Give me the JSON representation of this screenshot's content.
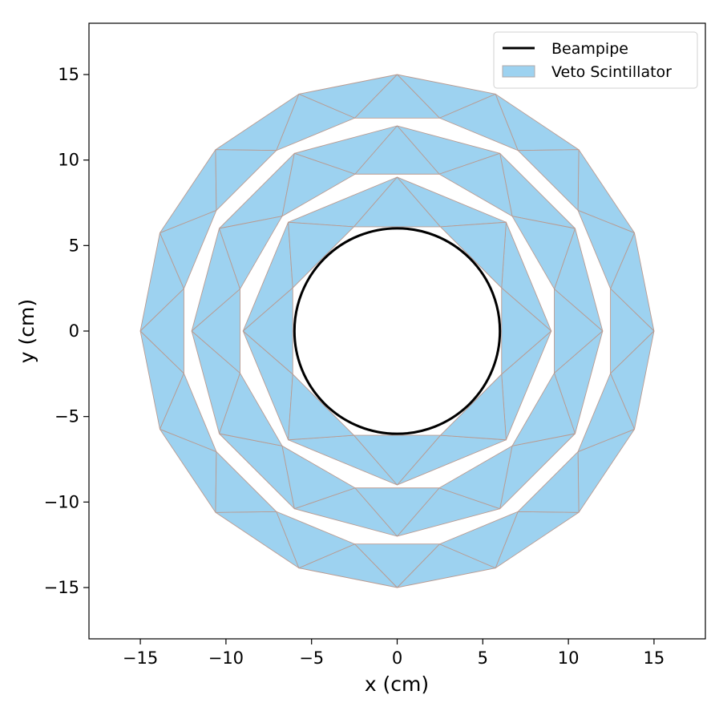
{
  "chart_data": {
    "type": "polygon-layout",
    "xlabel": "x (cm)",
    "ylabel": "y (cm)",
    "xlim": [
      -18,
      18
    ],
    "ylim": [
      -18,
      18
    ],
    "xticks": [
      -15,
      -10,
      -5,
      0,
      5,
      10,
      15
    ],
    "yticks": [
      -15,
      -10,
      -5,
      0,
      5,
      10,
      15
    ],
    "xtick_labels": [
      "−15",
      "−10",
      "−5",
      "0",
      "5",
      "10",
      "15"
    ],
    "ytick_labels": [
      "−15",
      "−10",
      "−5",
      "0",
      "5",
      "10",
      "15"
    ],
    "grid": false,
    "legend_position": "top-right",
    "legend": [
      {
        "label": "Beampipe",
        "kind": "line",
        "color": "#000000"
      },
      {
        "label": "Veto Scintillator",
        "kind": "patch",
        "color": "#9dd2f0"
      }
    ],
    "beampipe": {
      "center": [
        0,
        0
      ],
      "radius": 6
    },
    "rings": [
      {
        "name": "ring-inner",
        "sides": 8,
        "inner_radius": 6.6,
        "outer_radius": 9.0,
        "rotation_deg": 90
      },
      {
        "name": "ring-middle",
        "sides": 12,
        "inner_radius": 9.5,
        "outer_radius": 12.0,
        "rotation_deg": 0
      },
      {
        "name": "ring-outer",
        "sides": 16,
        "inner_radius": 12.7,
        "outer_radius": 15.0,
        "rotation_deg": 0
      }
    ],
    "colors": {
      "fill": "#9dd2f0",
      "edge": "#b99a90",
      "outline": "#c8bcbc",
      "beampipe": "#000000"
    }
  }
}
